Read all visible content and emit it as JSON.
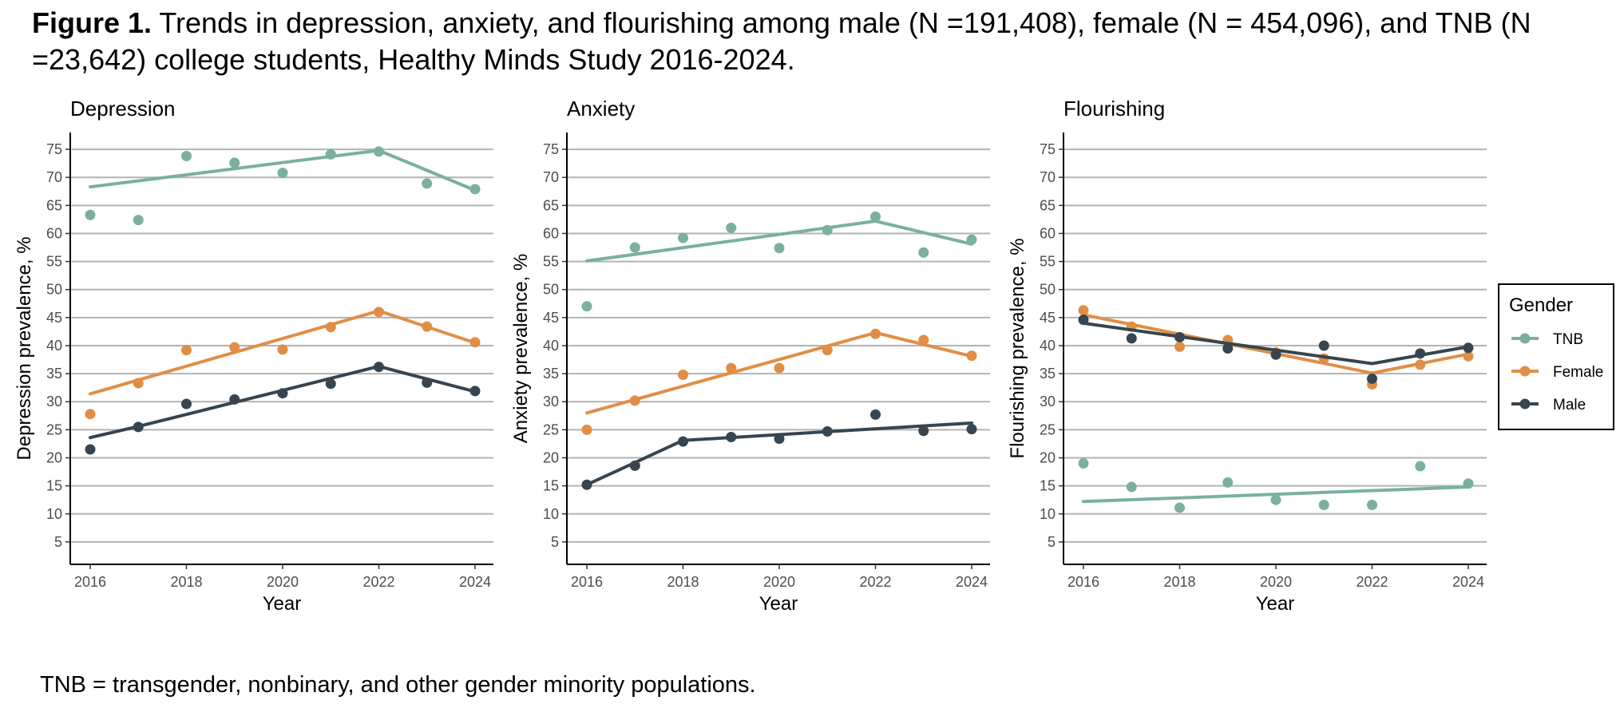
{
  "figure": {
    "label": "Figure 1.",
    "caption": "Trends in depression, anxiety, and flourishing among male (N =191,408), female (N = 454,096), and TNB (N =23,642) college students, Healthy Minds Study 2016-2024.",
    "footnote": "TNB = transgender, nonbinary, and other gender minority populations."
  },
  "legend": {
    "title": "Gender",
    "items": [
      {
        "label": "TNB",
        "color": "#79b19b"
      },
      {
        "label": "Female",
        "color": "#e08e45"
      },
      {
        "label": "Male",
        "color": "#36454f"
      }
    ]
  },
  "chart_data": [
    {
      "type": "line",
      "title": "Depression",
      "xlabel": "Year",
      "ylabel": "Depression prevalence, %",
      "x": [
        2016,
        2017,
        2018,
        2019,
        2020,
        2021,
        2022,
        2023,
        2024
      ],
      "xticks": [
        2016,
        2018,
        2020,
        2022,
        2024
      ],
      "yticks": [
        5,
        10,
        15,
        20,
        25,
        30,
        35,
        40,
        45,
        50,
        55,
        60,
        65,
        70,
        75
      ],
      "ylim": [
        1,
        78
      ],
      "grid": "horizontal",
      "series": [
        {
          "name": "TNB",
          "color": "#79b19b",
          "points": [
            63.3,
            62.4,
            73.8,
            72.6,
            70.8,
            74.1,
            74.6,
            68.9,
            67.9
          ],
          "trend": [
            [
              2016,
              68.3
            ],
            [
              2022,
              74.8
            ],
            [
              2024,
              67.7
            ]
          ]
        },
        {
          "name": "Female",
          "color": "#e08e45",
          "points": [
            27.8,
            33.3,
            39.2,
            39.7,
            39.3,
            43.3,
            46.0,
            43.4,
            40.6
          ],
          "trend": [
            [
              2016,
              31.4
            ],
            [
              2022,
              46.2
            ],
            [
              2024,
              40.5
            ]
          ]
        },
        {
          "name": "Male",
          "color": "#36454f",
          "points": [
            21.5,
            25.5,
            29.6,
            30.4,
            31.5,
            33.2,
            36.2,
            33.4,
            31.9
          ],
          "trend": [
            [
              2016,
              23.6
            ],
            [
              2017,
              25.6
            ],
            [
              2022,
              36.3
            ],
            [
              2024,
              31.8
            ]
          ]
        }
      ]
    },
    {
      "type": "line",
      "title": "Anxiety",
      "xlabel": "Year",
      "ylabel": "Anxiety prevalence, %",
      "x": [
        2016,
        2017,
        2018,
        2019,
        2020,
        2021,
        2022,
        2023,
        2024
      ],
      "xticks": [
        2016,
        2018,
        2020,
        2022,
        2024
      ],
      "yticks": [
        5,
        10,
        15,
        20,
        25,
        30,
        35,
        40,
        45,
        50,
        55,
        60,
        65,
        70,
        75
      ],
      "ylim": [
        1,
        78
      ],
      "grid": "horizontal",
      "series": [
        {
          "name": "TNB",
          "color": "#79b19b",
          "points": [
            47.0,
            57.5,
            59.2,
            61.0,
            57.4,
            60.6,
            63.0,
            56.6,
            58.9
          ],
          "trend": [
            [
              2016,
              55.1
            ],
            [
              2022,
              62.2
            ],
            [
              2024,
              58.1
            ]
          ]
        },
        {
          "name": "Female",
          "color": "#e08e45",
          "points": [
            25.0,
            30.2,
            34.8,
            36.0,
            36.0,
            39.2,
            42.1,
            41.0,
            38.2
          ],
          "trend": [
            [
              2016,
              28.0
            ],
            [
              2022,
              42.3
            ],
            [
              2024,
              38.1
            ]
          ]
        },
        {
          "name": "Male",
          "color": "#36454f",
          "points": [
            15.2,
            18.6,
            22.9,
            23.7,
            23.4,
            24.7,
            27.7,
            24.8,
            25.1
          ],
          "trend": [
            [
              2016,
              15.2
            ],
            [
              2018,
              23.1
            ],
            [
              2024,
              26.2
            ]
          ]
        }
      ]
    },
    {
      "type": "line",
      "title": "Flourishing",
      "xlabel": "Year",
      "ylabel": "Flourishing prevalence, %",
      "x": [
        2016,
        2017,
        2018,
        2019,
        2020,
        2021,
        2022,
        2023,
        2024
      ],
      "xticks": [
        2016,
        2018,
        2020,
        2022,
        2024
      ],
      "yticks": [
        5,
        10,
        15,
        20,
        25,
        30,
        35,
        40,
        45,
        50,
        55,
        60,
        65,
        70,
        75
      ],
      "ylim": [
        1,
        78
      ],
      "grid": "horizontal",
      "series": [
        {
          "name": "TNB",
          "color": "#79b19b",
          "points": [
            19.0,
            14.8,
            11.1,
            15.6,
            12.5,
            11.6,
            11.6,
            18.5,
            15.4
          ],
          "trend": [
            [
              2016,
              12.2
            ],
            [
              2024,
              14.8
            ]
          ]
        },
        {
          "name": "Female",
          "color": "#e08e45",
          "points": [
            46.3,
            43.4,
            39.8,
            41.0,
            38.8,
            37.7,
            33.1,
            36.6,
            38.1
          ],
          "trend": [
            [
              2016,
              45.5
            ],
            [
              2022,
              35.1
            ],
            [
              2024,
              38.5
            ]
          ]
        },
        {
          "name": "Male",
          "color": "#36454f",
          "points": [
            44.6,
            41.3,
            41.5,
            39.5,
            38.4,
            40.0,
            34.1,
            38.6,
            39.6
          ],
          "trend": [
            [
              2016,
              44.0
            ],
            [
              2022,
              36.8
            ],
            [
              2024,
              39.8
            ]
          ]
        }
      ]
    }
  ]
}
